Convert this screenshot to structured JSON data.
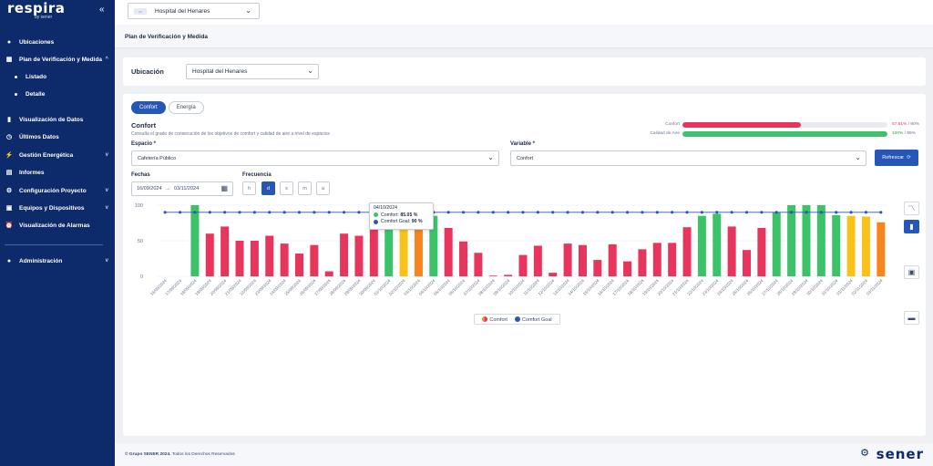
{
  "app": {
    "logo": "respira",
    "logo_by": "by sener"
  },
  "sidebar": {
    "items": [
      {
        "label": "Ubicaciones",
        "icon": "location-pin-icon"
      },
      {
        "label": "Plan de Verificación y Medida",
        "icon": "grid-icon"
      },
      {
        "label": "Listado"
      },
      {
        "label": "Detalle"
      },
      {
        "label": "Visualización de Datos",
        "icon": "bar-chart-icon"
      },
      {
        "label": "Últimos Datos",
        "icon": "clock-icon"
      },
      {
        "label": "Gestión Energética",
        "icon": "energy-icon"
      },
      {
        "label": "Informes",
        "icon": "report-icon"
      },
      {
        "label": "Configuración Proyecto",
        "icon": "gear-icon"
      },
      {
        "label": "Equipos y Dispositivos",
        "icon": "devices-icon"
      },
      {
        "label": "Visualización de Alarmas",
        "icon": "alarm-icon"
      },
      {
        "label": "Administración",
        "icon": "user-icon"
      }
    ]
  },
  "topbar": {
    "hospital_select": "Hospital del Henares"
  },
  "breadcrumb": "Plan de Verificación y Medida",
  "location": {
    "label": "Ubicación",
    "value": "Hospital del Henares"
  },
  "tabs": [
    {
      "label": "Confort"
    },
    {
      "label": "Energía"
    }
  ],
  "section": {
    "title": "Confort",
    "description": "Consulta el grado de consecución de los objetivos de comfort y calidad de aire a nivel de espacios"
  },
  "kpis": [
    {
      "label": "Confort",
      "value": 57.81,
      "value_text": "57.81%",
      "goal_text": " / 90%",
      "color": "#e8355e"
    },
    {
      "label": "Calidad de Aire",
      "value": 100,
      "value_text": "100%",
      "goal_text": " / 95%",
      "color": "#3cc36a"
    }
  ],
  "filters": {
    "espacio_label": "Espacio *",
    "espacio_value": "Cafetería Público",
    "variable_label": "Variable *",
    "variable_value": "Confort",
    "refresh_label": "Refrescar",
    "fechas_label": "Fechas",
    "date_from": "16/09/2024",
    "date_arrow": "→",
    "date_to": "03/11/2024",
    "frecuencia_label": "Frecuencia",
    "freq_options": [
      "h",
      "d",
      "s",
      "m",
      "a"
    ],
    "freq_selected": "d"
  },
  "tooltip": {
    "date": "04/10/2024",
    "comfort_label": "Comfort:",
    "comfort_value": "85.05 %",
    "goal_label": "Comfort Goal:",
    "goal_value": "90 %"
  },
  "colors": {
    "red": "#e8355e",
    "green": "#3cc36a",
    "orange": "#f7841f",
    "yellow": "#f7c21a",
    "goal": "#2a57b5"
  },
  "chart_data": {
    "type": "bar",
    "ylim": [
      0,
      100
    ],
    "yticks": [
      0,
      50,
      100
    ],
    "categories": [
      "16/09/2024",
      "17/09/2024",
      "18/09/2024",
      "19/09/2024",
      "20/09/2024",
      "21/09/2024",
      "22/09/2024",
      "23/09/2024",
      "24/09/2024",
      "25/09/2024",
      "26/09/2024",
      "27/09/2024",
      "28/09/2024",
      "29/09/2024",
      "30/09/2024",
      "01/10/2024",
      "02/10/2024",
      "03/10/2024",
      "04/10/2024",
      "05/10/2024",
      "06/10/2024",
      "07/10/2024",
      "08/10/2024",
      "09/10/2024",
      "10/10/2024",
      "11/10/2024",
      "12/10/2024",
      "13/10/2024",
      "14/10/2024",
      "15/10/2024",
      "16/10/2024",
      "17/10/2024",
      "18/10/2024",
      "19/10/2024",
      "20/10/2024",
      "21/10/2024",
      "22/10/2024",
      "23/10/2024",
      "24/10/2024",
      "25/10/2024",
      "26/10/2024",
      "27/10/2024",
      "28/10/2024",
      "29/10/2024",
      "30/10/2024",
      "31/10/2024",
      "01/11/2024",
      "02/11/2024",
      "03/11/2024"
    ],
    "series": [
      {
        "name": "Comfort",
        "values": [
          0,
          0,
          100,
          60,
          70,
          50,
          50,
          57,
          46,
          32,
          44,
          7,
          60,
          57,
          66,
          67,
          68,
          68,
          85.05,
          68,
          49,
          33,
          1,
          2,
          30,
          43,
          5,
          46,
          44,
          23,
          45,
          21,
          38,
          47,
          47,
          69,
          85,
          88,
          70,
          37,
          68,
          90,
          100,
          100,
          100,
          86,
          85,
          84,
          76
        ],
        "colors": [
          "r",
          "r",
          "g",
          "r",
          "r",
          "r",
          "r",
          "r",
          "r",
          "r",
          "r",
          "r",
          "r",
          "r",
          "r",
          "g",
          "y",
          "o",
          "g",
          "r",
          "r",
          "r",
          "r",
          "r",
          "r",
          "r",
          "r",
          "r",
          "r",
          "r",
          "r",
          "r",
          "r",
          "r",
          "r",
          "r",
          "g",
          "g",
          "r",
          "r",
          "r",
          "g",
          "g",
          "g",
          "g",
          "g",
          "y",
          "y",
          "o"
        ]
      },
      {
        "name": "Comfort Goal",
        "values": [
          90,
          90,
          90,
          90,
          90,
          90,
          90,
          90,
          90,
          90,
          90,
          90,
          90,
          90,
          90,
          90,
          90,
          90,
          90,
          90,
          90,
          90,
          90,
          90,
          90,
          90,
          90,
          90,
          90,
          90,
          90,
          90,
          90,
          90,
          90,
          90,
          90,
          90,
          90,
          90,
          90,
          90,
          90,
          90,
          90,
          90,
          90,
          90,
          90
        ]
      }
    ]
  },
  "legend": [
    {
      "label": "Comfort"
    },
    {
      "label": "Comfort Goal"
    }
  ],
  "footer": {
    "copyright_brand": "© Grupo SENER 2024.",
    "copyright_rest": " Todos los Derechos Reservados",
    "brand": "sener"
  }
}
